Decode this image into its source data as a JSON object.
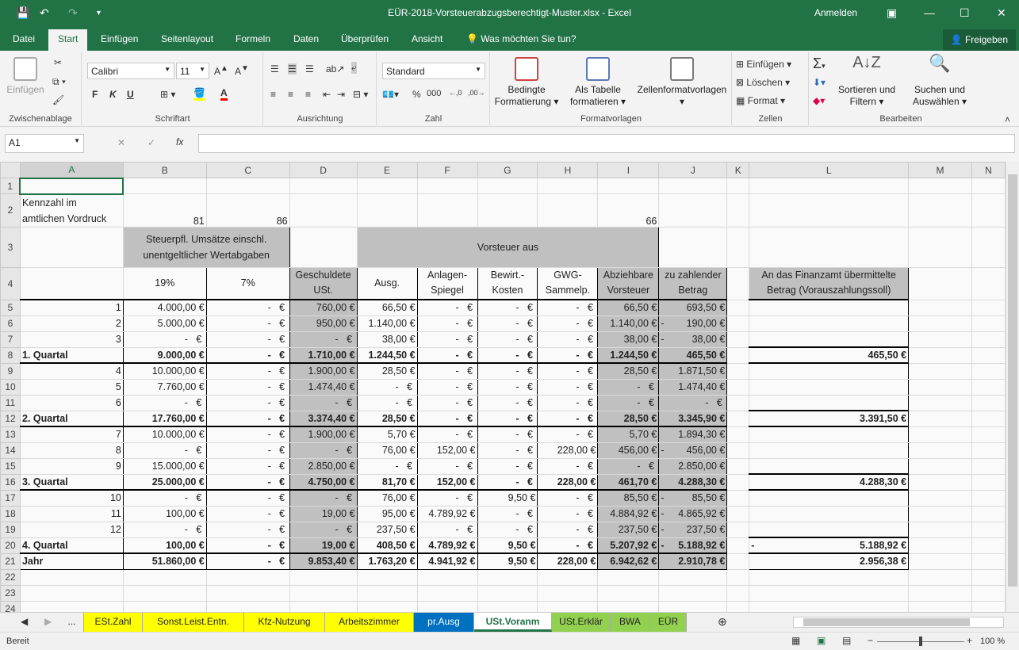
{
  "window": {
    "title": "EÜR-2018-Vorsteuerabzugsberechtigt-Muster.xlsx  -  Excel",
    "signin": "Anmelden"
  },
  "ribbon_tabs": [
    "Datei",
    "Start",
    "Einfügen",
    "Seitenlayout",
    "Formeln",
    "Daten",
    "Überprüfen",
    "Ansicht"
  ],
  "tell_me": "Was möchten Sie tun?",
  "share": "Freigeben",
  "ribbon": {
    "clipboard": {
      "paste": "Einfügen",
      "label": "Zwischenablage"
    },
    "font": {
      "name": "Calibri",
      "size": "11",
      "label": "Schriftart",
      "bold": "F",
      "italic": "K",
      "underline": "U"
    },
    "alignment": {
      "label": "Ausrichtung"
    },
    "number": {
      "format": "Standard",
      "label": "Zahl",
      "percent": "%",
      "thousands": "000"
    },
    "styles": {
      "conditional": "Bedingte Formatierung",
      "table": "Als Tabelle formatieren",
      "cell_styles": "Zellenformatvorlagen",
      "label": "Formatvorlagen"
    },
    "cells": {
      "insert": "Einfügen",
      "delete": "Löschen",
      "format": "Format",
      "label": "Zellen"
    },
    "editing": {
      "sort": "Sortieren und Filtern",
      "find": "Suchen und Auswählen",
      "label": "Bearbeiten"
    }
  },
  "formula_bar": {
    "name_box": "A1",
    "fx": "fx",
    "value": ""
  },
  "columns": [
    "A",
    "B",
    "C",
    "D",
    "E",
    "F",
    "G",
    "H",
    "I",
    "J",
    "K",
    "L",
    "M",
    "N"
  ],
  "header": {
    "a2": "Kennzahl im amtlichen Vordruck",
    "b2": "81",
    "c2": "86",
    "i2": "66",
    "b3": "Steuerpfl. Umsätze einschl. unentgeltlicher Wertabgaben",
    "e3": "Vorsteuer aus",
    "row4": [
      "",
      "19%",
      "7%",
      "Geschuldete USt.",
      "Ausg.",
      "Anlagen-Spiegel",
      "Bewirt.-Kosten",
      "GWG-Sammelp.",
      "Abziehbare Vorsteuer",
      "zu zahlender Betrag",
      "",
      "An das Finanzamt übermittelte Betrag (Vorauszahlungssoll)"
    ]
  },
  "rows": [
    {
      "n": 5,
      "cells": [
        "1",
        "4.000,00 €",
        "- €",
        "760,00 €",
        "66,50 €",
        "- €",
        "- €",
        "- €",
        "66,50 €",
        "693,50 €",
        "",
        ""
      ]
    },
    {
      "n": 6,
      "cells": [
        "2",
        "5.000,00 €",
        "- €",
        "950,00 €",
        "1.140,00 €",
        "- €",
        "- €",
        "- €",
        "1.140,00 €",
        "- 190,00 €",
        "",
        ""
      ]
    },
    {
      "n": 7,
      "cells": [
        "3",
        "- €",
        "- €",
        "- €",
        "38,00 €",
        "- €",
        "- €",
        "- €",
        "38,00 €",
        "- 38,00 €",
        "",
        ""
      ]
    },
    {
      "n": 8,
      "total": true,
      "cells": [
        "1. Quartal",
        "9.000,00 €",
        "- €",
        "1.710,00 €",
        "1.244,50 €",
        "- €",
        "- €",
        "- €",
        "1.244,50 €",
        "465,50 €",
        "",
        "465,50 €"
      ]
    },
    {
      "n": 9,
      "cells": [
        "4",
        "10.000,00 €",
        "- €",
        "1.900,00 €",
        "28,50 €",
        "- €",
        "- €",
        "- €",
        "28,50 €",
        "1.871,50 €",
        "",
        ""
      ]
    },
    {
      "n": 10,
      "cells": [
        "5",
        "7.760,00 €",
        "- €",
        "1.474,40 €",
        "- €",
        "- €",
        "- €",
        "- €",
        "- €",
        "1.474,40 €",
        "",
        ""
      ]
    },
    {
      "n": 11,
      "cells": [
        "6",
        "- €",
        "- €",
        "- €",
        "- €",
        "- €",
        "- €",
        "- €",
        "- €",
        "- €",
        "",
        ""
      ]
    },
    {
      "n": 12,
      "total": true,
      "cells": [
        "2. Quartal",
        "17.760,00 €",
        "- €",
        "3.374,40 €",
        "28,50 €",
        "- €",
        "- €",
        "- €",
        "28,50 €",
        "3.345,90 €",
        "",
        "3.391,50 €"
      ]
    },
    {
      "n": 13,
      "cells": [
        "7",
        "10.000,00 €",
        "- €",
        "1.900,00 €",
        "5,70 €",
        "- €",
        "- €",
        "- €",
        "5,70 €",
        "1.894,30 €",
        "",
        ""
      ]
    },
    {
      "n": 14,
      "cells": [
        "8",
        "- €",
        "- €",
        "- €",
        "76,00 €",
        "152,00 €",
        "- €",
        "228,00 €",
        "456,00 €",
        "- 456,00 €",
        "",
        ""
      ]
    },
    {
      "n": 15,
      "cells": [
        "9",
        "15.000,00 €",
        "- €",
        "2.850,00 €",
        "- €",
        "- €",
        "- €",
        "- €",
        "- €",
        "2.850,00 €",
        "",
        ""
      ]
    },
    {
      "n": 16,
      "total": true,
      "cells": [
        "3. Quartal",
        "25.000,00 €",
        "- €",
        "4.750,00 €",
        "81,70 €",
        "152,00 €",
        "- €",
        "228,00 €",
        "461,70 €",
        "4.288,30 €",
        "",
        "4.288,30 €"
      ]
    },
    {
      "n": 17,
      "cells": [
        "10",
        "- €",
        "- €",
        "- €",
        "76,00 €",
        "- €",
        "9,50 €",
        "- €",
        "85,50 €",
        "- 85,50 €",
        "",
        ""
      ]
    },
    {
      "n": 18,
      "cells": [
        "11",
        "100,00 €",
        "- €",
        "19,00 €",
        "95,00 €",
        "4.789,92 €",
        "- €",
        "- €",
        "4.884,92 €",
        "- 4.865,92 €",
        "",
        ""
      ]
    },
    {
      "n": 19,
      "cells": [
        "12",
        "- €",
        "- €",
        "- €",
        "237,50 €",
        "- €",
        "- €",
        "- €",
        "237,50 €",
        "- 237,50 €",
        "",
        ""
      ]
    },
    {
      "n": 20,
      "total": true,
      "cells": [
        "4. Quartal",
        "100,00 €",
        "- €",
        "19,00 €",
        "408,50 €",
        "4.789,92 €",
        "9,50 €",
        "- €",
        "5.207,92 €",
        "- 5.188,92 €",
        "",
        "- 5.188,92 €"
      ]
    },
    {
      "n": 21,
      "total": true,
      "year": true,
      "cells": [
        "Jahr",
        "51.860,00 €",
        "- €",
        "9.853,40 €",
        "1.763,20 €",
        "4.941,92 €",
        "9,50 €",
        "228,00 €",
        "6.942,62 €",
        "2.910,78 €",
        "",
        "2.956,38 €"
      ]
    }
  ],
  "sheet_tabs": [
    {
      "label": "...",
      "color": "#f0f0f0"
    },
    {
      "label": "ESt.Zahl",
      "color": "#ffff00"
    },
    {
      "label": "Sonst.Leist.Entn.",
      "color": "#ffff00"
    },
    {
      "label": "Kfz-Nutzung",
      "color": "#ffff00"
    },
    {
      "label": "Arbeitszimmer",
      "color": "#ffff00"
    },
    {
      "label": "pr.Ausg",
      "color": "#0070c0"
    },
    {
      "label": "USt.Voranm",
      "color": "#ffffff",
      "active": true
    },
    {
      "label": "USt.Erklär",
      "color": "#92d050"
    },
    {
      "label": "BWA",
      "color": "#92d050"
    },
    {
      "label": "EÜR",
      "color": "#92d050"
    }
  ],
  "status": {
    "ready": "Bereit",
    "zoom": "100 %"
  }
}
